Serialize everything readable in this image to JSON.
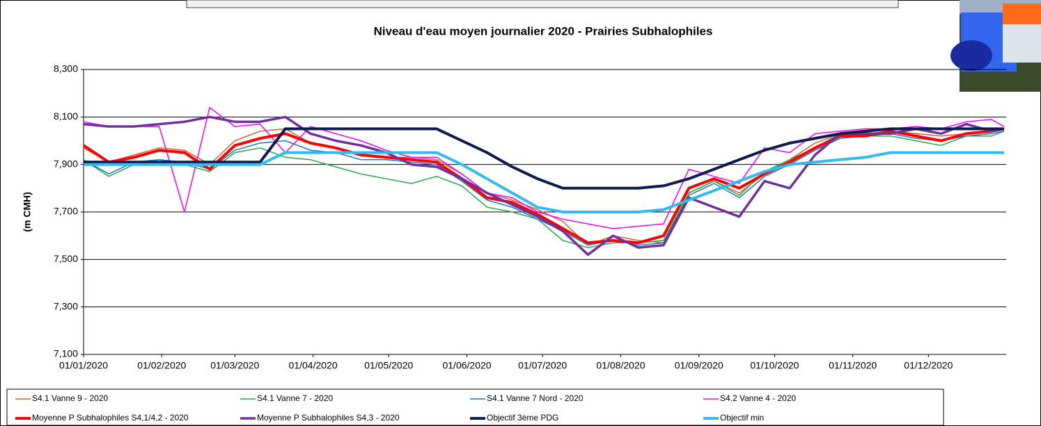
{
  "chart_data": {
    "type": "line",
    "title": "Niveau d'eau moyen journalier 2020 - Prairies Subhalophiles",
    "y_label": "(m CMH)",
    "x": [
      "01/01/2020",
      "11/01/2020",
      "21/01/2020",
      "31/01/2020",
      "10/02/2020",
      "20/02/2020",
      "01/03/2020",
      "11/03/2020",
      "21/03/2020",
      "31/03/2020",
      "10/04/2020",
      "20/04/2020",
      "30/04/2020",
      "10/05/2020",
      "20/05/2020",
      "30/05/2020",
      "09/06/2020",
      "19/06/2020",
      "29/06/2020",
      "09/07/2020",
      "19/07/2020",
      "29/07/2020",
      "08/08/2020",
      "18/08/2020",
      "28/08/2020",
      "07/09/2020",
      "17/09/2020",
      "27/09/2020",
      "07/10/2020",
      "17/10/2020",
      "27/10/2020",
      "06/11/2020",
      "16/11/2020",
      "26/11/2020",
      "06/12/2020",
      "16/12/2020",
      "26/12/2020",
      "31/12/2020"
    ],
    "xlim": [
      "01/01/2020",
      "31/12/2020"
    ],
    "xticks": [
      "01/01/2020",
      "01/02/2020",
      "01/03/2020",
      "01/04/2020",
      "01/05/2020",
      "01/06/2020",
      "01/07/2020",
      "01/08/2020",
      "01/09/2020",
      "01/10/2020",
      "01/11/2020",
      "01/12/2020"
    ],
    "ylim": [
      7.1,
      8.3
    ],
    "yticks": [
      {
        "value": 7.1,
        "label": "7,100"
      },
      {
        "value": 7.3,
        "label": "7,300"
      },
      {
        "value": 7.5,
        "label": "7,500"
      },
      {
        "value": 7.7,
        "label": "7,700"
      },
      {
        "value": 7.9,
        "label": "7,900"
      },
      {
        "value": 8.1,
        "label": "8,100"
      },
      {
        "value": 8.3,
        "label": "8,300"
      }
    ],
    "grid": true,
    "legend": "bottom",
    "series": [
      {
        "name": "S4.1 Vanne 9 - 2020",
        "color": "#cc6633",
        "width": 1.5,
        "values": [
          7.97,
          7.91,
          7.94,
          7.97,
          7.96,
          7.9,
          8.0,
          8.04,
          8.05,
          7.99,
          7.97,
          7.94,
          7.93,
          7.93,
          7.92,
          7.86,
          7.78,
          7.75,
          7.71,
          7.66,
          7.56,
          7.6,
          7.58,
          7.57,
          7.78,
          7.83,
          7.78,
          7.86,
          7.92,
          7.99,
          8.03,
          8.03,
          8.04,
          8.03,
          8.02,
          8.03,
          8.04,
          8.05
        ]
      },
      {
        "name": "S4.1 Vanne 7 - 2020",
        "color": "#22aa44",
        "width": 1.5,
        "values": [
          7.92,
          7.85,
          7.9,
          7.92,
          7.9,
          7.87,
          7.95,
          7.97,
          7.93,
          7.92,
          7.89,
          7.86,
          7.84,
          7.82,
          7.85,
          7.81,
          7.72,
          7.7,
          7.67,
          7.58,
          7.55,
          7.57,
          7.57,
          7.58,
          7.78,
          7.83,
          7.77,
          7.87,
          7.92,
          7.97,
          8.03,
          8.02,
          8.02,
          8.0,
          7.98,
          8.02,
          8.02,
          8.04
        ]
      },
      {
        "name": "S4.1 Vanne 7 Nord - 2020",
        "color": "#1f77c4",
        "width": 1.5,
        "values": [
          7.92,
          7.86,
          7.91,
          7.92,
          7.91,
          7.88,
          7.96,
          7.99,
          8.0,
          7.96,
          7.95,
          7.92,
          7.92,
          7.91,
          7.9,
          7.83,
          7.75,
          7.72,
          7.67,
          7.62,
          7.56,
          7.58,
          7.56,
          7.57,
          7.77,
          7.82,
          7.76,
          7.85,
          7.9,
          7.96,
          8.01,
          8.02,
          8.03,
          8.01,
          8.0,
          8.02,
          8.03,
          8.04
        ]
      },
      {
        "name": "S4.2 Vanne 4 - 2020",
        "color": "#ff00ff",
        "width": 1.5,
        "values": [
          8.08,
          8.06,
          8.06,
          8.06,
          7.7,
          8.14,
          8.06,
          8.07,
          7.95,
          8.06,
          8.03,
          8.0,
          7.96,
          7.93,
          7.93,
          7.86,
          7.78,
          7.76,
          7.7,
          7.67,
          7.65,
          7.63,
          7.64,
          7.65,
          7.88,
          7.85,
          7.82,
          7.97,
          7.95,
          8.03,
          8.04,
          8.05,
          8.05,
          8.06,
          8.05,
          8.08,
          8.09,
          8.06
        ]
      },
      {
        "name": "Moyenne P Subhalophiles S4,1/4,2 - 2020",
        "color": "#ff0000",
        "width": 4,
        "values": [
          7.98,
          7.91,
          7.93,
          7.96,
          7.95,
          7.88,
          7.98,
          8.01,
          8.03,
          7.99,
          7.97,
          7.94,
          7.93,
          7.92,
          7.91,
          7.84,
          7.76,
          7.74,
          7.69,
          7.63,
          7.57,
          7.58,
          7.57,
          7.6,
          7.8,
          7.84,
          7.8,
          7.86,
          7.91,
          7.97,
          8.02,
          8.02,
          8.04,
          8.02,
          8.0,
          8.03,
          8.04,
          8.05
        ]
      },
      {
        "name": "Moyenne P Subhalophiles S4,3 - 2020",
        "color": "#7030a0",
        "width": 3.5,
        "values": [
          8.07,
          8.06,
          8.06,
          8.07,
          8.08,
          8.1,
          8.08,
          8.08,
          8.1,
          8.03,
          8.0,
          7.98,
          7.95,
          7.9,
          7.89,
          7.84,
          7.78,
          7.73,
          7.68,
          7.62,
          7.52,
          7.6,
          7.55,
          7.56,
          7.76,
          7.72,
          7.68,
          7.83,
          7.8,
          7.94,
          8.03,
          8.03,
          8.03,
          8.05,
          8.03,
          8.07,
          8.04,
          8.05
        ]
      },
      {
        "name": "Objectif 3ème PDG",
        "color": "#0d1b4d",
        "width": 4,
        "values": [
          7.91,
          7.91,
          7.91,
          7.91,
          7.91,
          7.91,
          7.91,
          7.91,
          8.05,
          8.05,
          8.05,
          8.05,
          8.05,
          8.05,
          8.05,
          8.0,
          7.95,
          7.89,
          7.84,
          7.8,
          7.8,
          7.8,
          7.8,
          7.81,
          7.84,
          7.88,
          7.92,
          7.96,
          7.99,
          8.01,
          8.03,
          8.04,
          8.05,
          8.05,
          8.05,
          8.05,
          8.05,
          8.05
        ]
      },
      {
        "name": "Objectif min",
        "color": "#33bbee",
        "width": 4,
        "values": [
          7.9,
          7.9,
          7.9,
          7.9,
          7.9,
          7.9,
          7.9,
          7.9,
          7.95,
          7.95,
          7.95,
          7.95,
          7.95,
          7.95,
          7.95,
          7.9,
          7.84,
          7.78,
          7.72,
          7.7,
          7.7,
          7.7,
          7.7,
          7.71,
          7.75,
          7.79,
          7.83,
          7.87,
          7.9,
          7.91,
          7.92,
          7.93,
          7.95,
          7.95,
          7.95,
          7.95,
          7.95,
          7.95
        ]
      }
    ]
  }
}
